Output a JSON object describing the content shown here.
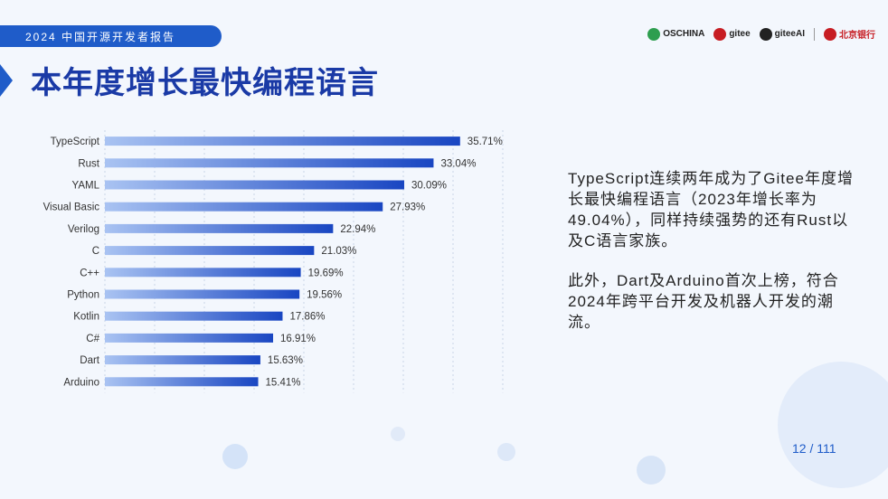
{
  "header": {
    "report_title": "2024 中国开源开发者报告"
  },
  "logos": [
    "OSCHINA",
    "gitee",
    "giteeAI",
    "北京银行"
  ],
  "page_title": "本年度增长最快编程语言",
  "chart_data": {
    "type": "bar",
    "orientation": "horizontal",
    "categories": [
      "TypeScript",
      "Rust",
      "YAML",
      "Visual Basic",
      "Verilog",
      "C",
      "C++",
      "Python",
      "Kotlin",
      "C#",
      "Dart",
      "Arduino"
    ],
    "values": [
      35.71,
      33.04,
      30.09,
      27.93,
      22.94,
      21.03,
      19.69,
      19.56,
      17.86,
      16.91,
      15.63,
      15.41
    ],
    "value_labels": [
      "35.71%",
      "33.04%",
      "30.09%",
      "27.93%",
      "22.94%",
      "21.03%",
      "19.69%",
      "19.56%",
      "17.86%",
      "16.91%",
      "15.63%",
      "15.41%"
    ],
    "xlim": [
      0,
      40
    ],
    "grid": true,
    "colors": {
      "bar_start": "#a9c3f2",
      "bar_end": "#1946c2",
      "grid": "#c9d4e8"
    }
  },
  "side_text": {
    "para1": "TypeScript连续两年成为了Gitee年度增长最快编程语言（2023年增长率为49.04%），同样持续强势的还有Rust以及C语言家族。",
    "para2": "此外，Dart及Arduino首次上榜，符合2024年跨平台开发及机器人开发的潮流。"
  },
  "page_number": "12 / 111",
  "colors": {
    "brand": "#1f5cc9",
    "title": "#1a3aa6"
  }
}
